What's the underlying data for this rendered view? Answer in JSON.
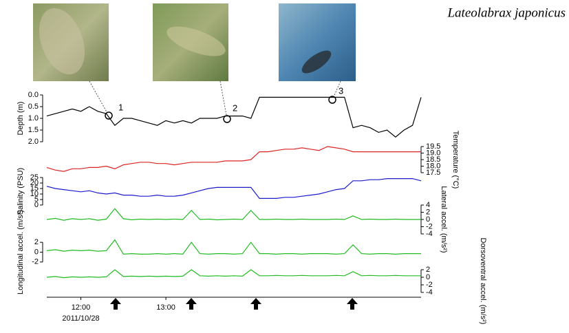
{
  "title": "Lateolabrax japonicus",
  "photos": [
    {
      "label": "1"
    },
    {
      "label": "2"
    },
    {
      "label": "3"
    }
  ],
  "chart_data": {
    "type": "line",
    "x": [
      11.6,
      11.7,
      11.8,
      11.9,
      12.0,
      12.1,
      12.2,
      12.3,
      12.4,
      12.5,
      12.6,
      12.7,
      12.8,
      12.9,
      13.0,
      13.1,
      13.2,
      13.3,
      13.4,
      13.5,
      13.6,
      13.7,
      13.8,
      13.9,
      14.0,
      14.1,
      14.2,
      14.3,
      14.4,
      14.5,
      14.6,
      14.7,
      14.8,
      14.9,
      15.0,
      15.1,
      15.2,
      15.3,
      15.4,
      15.5,
      15.6,
      15.7,
      15.8,
      15.9,
      16.0
    ],
    "xlim": [
      11.6,
      16.0
    ],
    "xticks": [
      {
        "value": 12,
        "label": "12:00"
      },
      {
        "value": 13,
        "label": "13:00"
      }
    ],
    "date": "2011/10/28",
    "panels": [
      {
        "ylabel": "Depth (m)",
        "side": "left",
        "inverted": true,
        "ylim": [
          0,
          2
        ],
        "yticks": [
          {
            "value": 0,
            "label": "0.0"
          },
          0.5,
          {
            "value": 1,
            "label": "1.0"
          },
          1.5,
          {
            "value": 2,
            "label": "2.0"
          }
        ],
        "series": [
          {
            "color": "#000000",
            "values": [
              0.9,
              0.8,
              0.7,
              0.6,
              0.7,
              0.5,
              0.7,
              0.8,
              1.3,
              1.0,
              1.0,
              1.1,
              1.2,
              1.3,
              1.1,
              1.2,
              1.1,
              1.2,
              1.0,
              1.0,
              1.0,
              0.9,
              0.9,
              0.9,
              1.0,
              0.1,
              0.1,
              0.1,
              0.1,
              0.1,
              0.1,
              0.1,
              0.1,
              0.1,
              0.1,
              0.1,
              1.4,
              1.3,
              1.4,
              1.6,
              1.5,
              1.8,
              1.5,
              1.3,
              0.1
            ]
          }
        ]
      },
      {
        "ylabel": "Temperature (°C)",
        "side": "right",
        "ylim": [
          17.5,
          19.5
        ],
        "yticks": [
          17.5,
          {
            "value": 18,
            "label": "18.0"
          },
          18.5,
          {
            "value": 19,
            "label": "19.0"
          },
          19.5
        ],
        "series": [
          {
            "color": "#dd2222",
            "values": [
              17.9,
              17.7,
              17.6,
              17.8,
              17.8,
              17.9,
              17.9,
              18.0,
              17.8,
              18.1,
              18.2,
              18.3,
              18.3,
              18.2,
              18.2,
              18.1,
              18.2,
              18.3,
              18.3,
              18.3,
              18.3,
              18.4,
              18.4,
              18.4,
              18.5,
              19.1,
              19.1,
              19.2,
              19.3,
              19.3,
              19.4,
              19.3,
              19.2,
              19.5,
              19.4,
              19.3,
              19.1,
              19.1,
              19.1,
              19.1,
              19.1,
              19.1,
              19.1,
              19.1,
              19.1
            ]
          }
        ]
      },
      {
        "ylabel": "Salinity (PSU)",
        "side": "left",
        "ylim": [
          0,
          25
        ],
        "yticks": [
          0,
          5,
          10,
          15,
          20,
          25
        ],
        "series": [
          {
            "color": "#1a1acc",
            "values": [
              17,
              15,
              14,
              13,
              12,
              13,
              11,
              10,
              11,
              9,
              9,
              8,
              8,
              9,
              8,
              8,
              9,
              11,
              13,
              15,
              16,
              16,
              16,
              16,
              16,
              6,
              6,
              6,
              7,
              7,
              8,
              9,
              10,
              12,
              14,
              15,
              22,
              22,
              23,
              23,
              24,
              24,
              24,
              24,
              22
            ]
          }
        ]
      },
      {
        "ylabel": "Lateral accel. (m/s²)",
        "side": "right",
        "ylim": [
          -4,
          4
        ],
        "yticks": [
          -4,
          -2,
          0,
          2,
          4
        ],
        "series": [
          {
            "color": "#22bb22",
            "values": [
              0,
              0.3,
              -0.2,
              0.2,
              0,
              0.2,
              -0.2,
              0.1,
              3,
              0.2,
              -0.1,
              0.1,
              0,
              0.1,
              0,
              0.1,
              0,
              2.5,
              0,
              0.1,
              -0.1,
              0,
              0.1,
              0,
              2.5,
              0,
              0,
              0.1,
              0,
              0,
              0.1,
              0,
              0,
              0,
              0.1,
              0,
              1,
              0,
              0.1,
              0,
              0,
              0.1,
              0,
              0,
              0
            ]
          }
        ]
      },
      {
        "ylabel": "Longitudinal accel. (m/s²)",
        "side": "left",
        "ylim": [
          -3,
          3
        ],
        "yticks": [
          -2,
          0,
          2
        ],
        "series": [
          {
            "color": "#22bb22",
            "values": [
              0.3,
              0.5,
              0.2,
              0.4,
              0.3,
              0.4,
              0.2,
              0.3,
              2.5,
              -0.4,
              -0.3,
              -0.4,
              -0.4,
              -0.3,
              -0.4,
              -0.3,
              -0.4,
              2,
              -0.3,
              -0.4,
              -0.3,
              -0.3,
              -0.4,
              -0.3,
              2,
              -0.3,
              -0.3,
              -0.4,
              -0.3,
              -0.3,
              -0.4,
              -0.3,
              -0.3,
              -0.3,
              -0.4,
              -0.3,
              1.5,
              -0.3,
              -0.4,
              -0.3,
              -0.3,
              -0.4,
              -0.3,
              -0.3,
              -0.3
            ]
          }
        ]
      },
      {
        "ylabel": "Dorsoventral accel. (m/s²)",
        "side": "right",
        "ylim": [
          -4,
          2
        ],
        "yticks": [
          -4,
          -2,
          0,
          2
        ],
        "series": [
          {
            "color": "#22bb22",
            "values": [
              0,
              0.2,
              -0.1,
              0.1,
              0,
              0.1,
              0,
              0.1,
              2,
              0.2,
              0.3,
              0.2,
              0.3,
              0.2,
              0.3,
              0.2,
              0.3,
              2,
              0.4,
              0.3,
              0.4,
              0.3,
              0.4,
              0.3,
              2,
              0.4,
              0.4,
              0.5,
              0.4,
              0.4,
              0.5,
              0.4,
              0.4,
              0.4,
              0.5,
              0.4,
              1.5,
              0.4,
              0.5,
              0.4,
              0.4,
              0.5,
              0.4,
              0.4,
              0.4
            ]
          }
        ]
      }
    ]
  }
}
